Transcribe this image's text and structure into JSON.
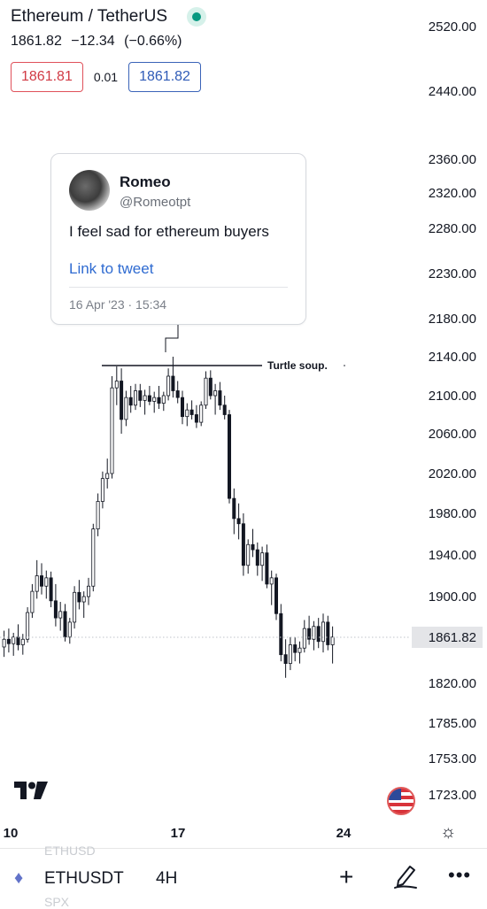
{
  "header": {
    "symbol_title": "Ethereum / TetherUS",
    "last_price": "1861.82",
    "change": "−12.34",
    "change_pct": "(−0.66%)",
    "bid": "1861.81",
    "spread": "0.01",
    "ask": "1861.82"
  },
  "tweet": {
    "name": "Romeo",
    "handle": "@Romeotpt",
    "text": "I feel sad for ethereum buyers",
    "link": "Link to tweet",
    "date": "16 Apr '23 · 15:34"
  },
  "annotation": {
    "label": "Turtle soup."
  },
  "chart_data": {
    "type": "candlestick",
    "y_tick_labels": [
      "2520.00",
      "2440.00",
      "2360.00",
      "2320.00",
      "2280.00",
      "2230.00",
      "2180.00",
      "2140.00",
      "2100.00",
      "2060.00",
      "2020.00",
      "1980.00",
      "1940.00",
      "1900.00",
      "1861.82",
      "1820.00",
      "1785.00",
      "1753.00",
      "1723.00"
    ],
    "x_tick_labels": [
      "10",
      "17",
      "24"
    ],
    "current_price": 1861.82,
    "ylim": [
      1715,
      2535
    ],
    "candles": [
      {
        "o": 1853,
        "h": 1868,
        "l": 1844,
        "c": 1860
      },
      {
        "o": 1860,
        "h": 1870,
        "l": 1848,
        "c": 1856
      },
      {
        "o": 1856,
        "h": 1866,
        "l": 1845,
        "c": 1862
      },
      {
        "o": 1862,
        "h": 1874,
        "l": 1850,
        "c": 1855
      },
      {
        "o": 1855,
        "h": 1865,
        "l": 1846,
        "c": 1860
      },
      {
        "o": 1860,
        "h": 1890,
        "l": 1857,
        "c": 1885
      },
      {
        "o": 1885,
        "h": 1912,
        "l": 1880,
        "c": 1905
      },
      {
        "o": 1905,
        "h": 1935,
        "l": 1898,
        "c": 1920
      },
      {
        "o": 1920,
        "h": 1932,
        "l": 1902,
        "c": 1910
      },
      {
        "o": 1910,
        "h": 1925,
        "l": 1898,
        "c": 1918
      },
      {
        "o": 1918,
        "h": 1924,
        "l": 1890,
        "c": 1896
      },
      {
        "o": 1896,
        "h": 1912,
        "l": 1872,
        "c": 1880
      },
      {
        "o": 1880,
        "h": 1895,
        "l": 1868,
        "c": 1886
      },
      {
        "o": 1886,
        "h": 1893,
        "l": 1858,
        "c": 1862
      },
      {
        "o": 1862,
        "h": 1880,
        "l": 1856,
        "c": 1876
      },
      {
        "o": 1876,
        "h": 1910,
        "l": 1870,
        "c": 1904
      },
      {
        "o": 1904,
        "h": 1916,
        "l": 1888,
        "c": 1895
      },
      {
        "o": 1895,
        "h": 1905,
        "l": 1880,
        "c": 1900
      },
      {
        "o": 1900,
        "h": 1918,
        "l": 1892,
        "c": 1910
      },
      {
        "o": 1910,
        "h": 1970,
        "l": 1905,
        "c": 1965
      },
      {
        "o": 1965,
        "h": 2000,
        "l": 1958,
        "c": 1992
      },
      {
        "o": 1992,
        "h": 2022,
        "l": 1985,
        "c": 2015
      },
      {
        "o": 2015,
        "h": 2035,
        "l": 2005,
        "c": 2020
      },
      {
        "o": 2020,
        "h": 2120,
        "l": 2015,
        "c": 2108
      },
      {
        "o": 2108,
        "h": 2130,
        "l": 2090,
        "c": 2115
      },
      {
        "o": 2115,
        "h": 2128,
        "l": 2060,
        "c": 2075
      },
      {
        "o": 2075,
        "h": 2105,
        "l": 2068,
        "c": 2098
      },
      {
        "o": 2098,
        "h": 2110,
        "l": 2082,
        "c": 2090
      },
      {
        "o": 2090,
        "h": 2112,
        "l": 2085,
        "c": 2105
      },
      {
        "o": 2105,
        "h": 2112,
        "l": 2088,
        "c": 2095
      },
      {
        "o": 2095,
        "h": 2106,
        "l": 2080,
        "c": 2100
      },
      {
        "o": 2100,
        "h": 2110,
        "l": 2090,
        "c": 2094
      },
      {
        "o": 2094,
        "h": 2104,
        "l": 2082,
        "c": 2098
      },
      {
        "o": 2098,
        "h": 2110,
        "l": 2086,
        "c": 2092
      },
      {
        "o": 2092,
        "h": 2104,
        "l": 2084,
        "c": 2100
      },
      {
        "o": 2100,
        "h": 2128,
        "l": 2095,
        "c": 2120
      },
      {
        "o": 2120,
        "h": 2140,
        "l": 2098,
        "c": 2105
      },
      {
        "o": 2105,
        "h": 2115,
        "l": 2092,
        "c": 2098
      },
      {
        "o": 2098,
        "h": 2105,
        "l": 2070,
        "c": 2078
      },
      {
        "o": 2078,
        "h": 2092,
        "l": 2068,
        "c": 2085
      },
      {
        "o": 2085,
        "h": 2095,
        "l": 2075,
        "c": 2080
      },
      {
        "o": 2080,
        "h": 2090,
        "l": 2066,
        "c": 2072
      },
      {
        "o": 2072,
        "h": 2094,
        "l": 2068,
        "c": 2090
      },
      {
        "o": 2090,
        "h": 2125,
        "l": 2086,
        "c": 2118
      },
      {
        "o": 2118,
        "h": 2126,
        "l": 2096,
        "c": 2100
      },
      {
        "o": 2100,
        "h": 2112,
        "l": 2080,
        "c": 2105
      },
      {
        "o": 2105,
        "h": 2114,
        "l": 2085,
        "c": 2090
      },
      {
        "o": 2090,
        "h": 2100,
        "l": 2075,
        "c": 2080
      },
      {
        "o": 2080,
        "h": 2085,
        "l": 1990,
        "c": 1995
      },
      {
        "o": 1995,
        "h": 2005,
        "l": 1960,
        "c": 1975
      },
      {
        "o": 1975,
        "h": 1990,
        "l": 1955,
        "c": 1970
      },
      {
        "o": 1970,
        "h": 1980,
        "l": 1920,
        "c": 1930
      },
      {
        "o": 1930,
        "h": 1955,
        "l": 1922,
        "c": 1950
      },
      {
        "o": 1950,
        "h": 1965,
        "l": 1938,
        "c": 1945
      },
      {
        "o": 1945,
        "h": 1952,
        "l": 1920,
        "c": 1930
      },
      {
        "o": 1930,
        "h": 1948,
        "l": 1915,
        "c": 1942
      },
      {
        "o": 1942,
        "h": 1950,
        "l": 1908,
        "c": 1912
      },
      {
        "o": 1912,
        "h": 1925,
        "l": 1892,
        "c": 1918
      },
      {
        "o": 1918,
        "h": 1922,
        "l": 1878,
        "c": 1884
      },
      {
        "o": 1884,
        "h": 1893,
        "l": 1840,
        "c": 1846
      },
      {
        "o": 1846,
        "h": 1860,
        "l": 1825,
        "c": 1838
      },
      {
        "o": 1838,
        "h": 1862,
        "l": 1832,
        "c": 1855
      },
      {
        "o": 1855,
        "h": 1862,
        "l": 1840,
        "c": 1848
      },
      {
        "o": 1848,
        "h": 1858,
        "l": 1838,
        "c": 1852
      },
      {
        "o": 1852,
        "h": 1878,
        "l": 1848,
        "c": 1870
      },
      {
        "o": 1870,
        "h": 1882,
        "l": 1855,
        "c": 1860
      },
      {
        "o": 1860,
        "h": 1877,
        "l": 1850,
        "c": 1872
      },
      {
        "o": 1872,
        "h": 1880,
        "l": 1852,
        "c": 1858
      },
      {
        "o": 1858,
        "h": 1884,
        "l": 1848,
        "c": 1876
      },
      {
        "o": 1876,
        "h": 1882,
        "l": 1850,
        "c": 1855
      },
      {
        "o": 1855,
        "h": 1872,
        "l": 1838,
        "c": 1862
      }
    ]
  },
  "bottom_bar": {
    "symbol": "ETHUSDT",
    "interval": "4H",
    "ghost_top": "ETHUSD",
    "ghost_bottom": "SPX",
    "plus_glyph": "+",
    "more_glyph": "•••"
  },
  "icons": {
    "eth_glyph": "♦",
    "gear_glyph": "☼"
  },
  "colors": {
    "up": "#131722",
    "down": "#131722",
    "price_label_bg": "#e4e5e8",
    "bid": "#d13a44",
    "ask": "#2f5bb7"
  }
}
